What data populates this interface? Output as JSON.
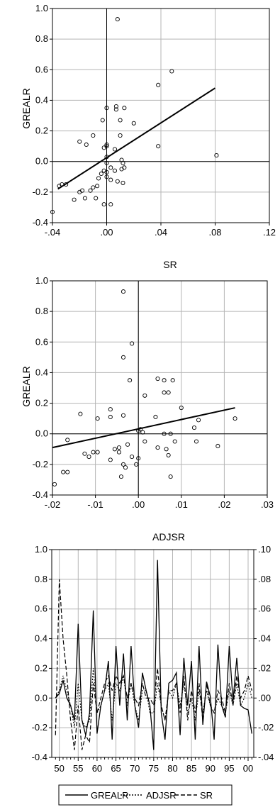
{
  "chart_data": [
    {
      "type": "scatter",
      "title": "",
      "xlabel": "",
      "ylabel": "GREALR",
      "xlim": [
        -0.04,
        0.12
      ],
      "ylim": [
        -0.4,
        1.0
      ],
      "x_ticks": [
        ".04",
        ".00",
        ".04",
        ".08",
        ".12"
      ],
      "x_tick_values": [
        -0.04,
        0.0,
        0.04,
        0.08,
        0.12
      ],
      "x_tick_labels": [
        "-.04",
        ".00",
        ".04",
        ".08",
        ".12"
      ],
      "y_tick_values": [
        -0.4,
        -0.2,
        0.0,
        0.2,
        0.4,
        0.6,
        0.8,
        1.0
      ],
      "y_tick_labels": [
        "-0.4",
        "-0.2",
        "0.0",
        "0.2",
        "0.4",
        "0.6",
        "0.8",
        "1.0"
      ],
      "grid": true,
      "reference_lines": {
        "x": 0.0,
        "y": 0.0
      },
      "points": [
        [
          0.008,
          0.93
        ],
        [
          0.048,
          0.59
        ],
        [
          0.038,
          0.5
        ],
        [
          0.038,
          0.1
        ],
        [
          0.081,
          0.04
        ],
        [
          0.02,
          0.25
        ],
        [
          0.007,
          0.36
        ],
        [
          0.007,
          0.34
        ],
        [
          0.013,
          0.35
        ],
        [
          0.0,
          0.35
        ],
        [
          0.01,
          0.27
        ],
        [
          0.01,
          0.17
        ],
        [
          -0.003,
          0.27
        ],
        [
          -0.01,
          0.17
        ],
        [
          -0.02,
          0.13
        ],
        [
          -0.015,
          0.11
        ],
        [
          0.0,
          0.11
        ],
        [
          0.0,
          0.1
        ],
        [
          -0.002,
          0.09
        ],
        [
          0.006,
          0.08
        ],
        [
          0.011,
          0.01
        ],
        [
          0.012,
          -0.01
        ],
        [
          0.0,
          0.03
        ],
        [
          0.0,
          -0.01
        ],
        [
          0.003,
          -0.04
        ],
        [
          0.006,
          -0.06
        ],
        [
          0.013,
          -0.04
        ],
        [
          0.011,
          -0.05
        ],
        [
          -0.002,
          -0.06
        ],
        [
          -0.004,
          -0.08
        ],
        [
          0.0,
          -0.1
        ],
        [
          -0.006,
          -0.11
        ],
        [
          0.003,
          -0.12
        ],
        [
          0.008,
          -0.13
        ],
        [
          0.012,
          -0.14
        ],
        [
          -0.007,
          -0.16
        ],
        [
          -0.01,
          -0.17
        ],
        [
          -0.012,
          -0.19
        ],
        [
          -0.018,
          -0.19
        ],
        [
          -0.02,
          -0.2
        ],
        [
          -0.016,
          -0.24
        ],
        [
          -0.024,
          -0.25
        ],
        [
          -0.033,
          -0.15
        ],
        [
          -0.035,
          -0.16
        ],
        [
          -0.03,
          -0.15
        ],
        [
          -0.002,
          -0.28
        ],
        [
          0.003,
          -0.28
        ],
        [
          -0.04,
          -0.33
        ],
        [
          -0.008,
          -0.24
        ],
        [
          0.0,
          -0.07
        ]
      ],
      "fit_line": [
        [
          -0.036,
          -0.18
        ],
        [
          0.08,
          0.48
        ]
      ]
    },
    {
      "type": "scatter",
      "title": "SR",
      "xlabel": "",
      "ylabel": "GREALR",
      "xlim": [
        -0.02,
        0.03
      ],
      "ylim": [
        -0.4,
        1.0
      ],
      "x_tick_values": [
        -0.02,
        -0.01,
        0.0,
        0.01,
        0.02,
        0.03
      ],
      "x_tick_labels": [
        "-.02",
        "-.01",
        ".00",
        ".01",
        ".02",
        ".03"
      ],
      "y_tick_values": [
        -0.4,
        -0.2,
        0.0,
        0.2,
        0.4,
        0.6,
        0.8,
        1.0
      ],
      "y_tick_labels": [
        "-0.4",
        "-0.2",
        "0.0",
        "0.2",
        "0.4",
        "0.6",
        "0.8",
        "1.0"
      ],
      "grid": true,
      "reference_lines": {
        "x": 0.0,
        "y": 0.0
      },
      "points": [
        [
          -0.0035,
          0.93
        ],
        [
          -0.0015,
          0.59
        ],
        [
          -0.0035,
          0.5
        ],
        [
          -0.002,
          0.35
        ],
        [
          0.0045,
          0.36
        ],
        [
          0.006,
          0.35
        ],
        [
          0.008,
          0.35
        ],
        [
          0.006,
          0.27
        ],
        [
          0.007,
          0.27
        ],
        [
          0.0015,
          0.25
        ],
        [
          0.01,
          0.17
        ],
        [
          -0.0065,
          0.16
        ],
        [
          -0.0035,
          0.12
        ],
        [
          -0.0065,
          0.11
        ],
        [
          -0.0095,
          0.1
        ],
        [
          0.004,
          0.11
        ],
        [
          0.0225,
          0.1
        ],
        [
          0.014,
          0.09
        ],
        [
          0.013,
          0.04
        ],
        [
          0.0005,
          0.03
        ],
        [
          0.001,
          0.01
        ],
        [
          0.006,
          0.0
        ],
        [
          0.0075,
          0.0
        ],
        [
          -0.0165,
          -0.04
        ],
        [
          -0.0025,
          -0.07
        ],
        [
          0.0015,
          -0.05
        ],
        [
          0.0085,
          -0.05
        ],
        [
          0.0135,
          -0.05
        ],
        [
          0.0185,
          -0.08
        ],
        [
          0.0045,
          -0.09
        ],
        [
          0.0065,
          -0.1
        ],
        [
          -0.0055,
          -0.1
        ],
        [
          -0.0095,
          -0.12
        ],
        [
          -0.0105,
          -0.12
        ],
        [
          -0.0125,
          -0.13
        ],
        [
          -0.0115,
          -0.15
        ],
        [
          -0.0045,
          -0.12
        ],
        [
          -0.0015,
          -0.15
        ],
        [
          0.0,
          -0.16
        ],
        [
          0.007,
          -0.14
        ],
        [
          -0.0065,
          -0.17
        ],
        [
          -0.0035,
          -0.2
        ],
        [
          -0.003,
          -0.22
        ],
        [
          -0.0005,
          -0.2
        ],
        [
          -0.0165,
          -0.25
        ],
        [
          -0.0175,
          -0.25
        ],
        [
          -0.004,
          -0.28
        ],
        [
          0.0075,
          -0.28
        ],
        [
          -0.0195,
          -0.33
        ],
        [
          -0.0045,
          -0.09
        ],
        [
          -0.0135,
          0.13
        ],
        [
          0.0,
          0.02
        ]
      ],
      "fit_line": [
        [
          -0.02,
          -0.09
        ],
        [
          0.0225,
          0.17
        ]
      ]
    },
    {
      "type": "line",
      "title": "ADJSR",
      "xlabel": "",
      "ylabel": "",
      "x": [
        1949,
        1950,
        1951,
        1952,
        1953,
        1954,
        1955,
        1956,
        1957,
        1958,
        1959,
        1960,
        1961,
        1962,
        1963,
        1964,
        1965,
        1966,
        1967,
        1968,
        1969,
        1970,
        1971,
        1972,
        1973,
        1974,
        1975,
        1976,
        1977,
        1978,
        1979,
        1980,
        1981,
        1982,
        1983,
        1984,
        1985,
        1986,
        1987,
        1988,
        1989,
        1990,
        1991,
        1992,
        1993,
        1994,
        1995,
        1996,
        1997,
        1998,
        1999,
        2000,
        2001
      ],
      "x_tick_values": [
        1950,
        1955,
        1960,
        1965,
        1970,
        1975,
        1980,
        1985,
        1990,
        1995,
        2000
      ],
      "x_tick_labels": [
        "50",
        "55",
        "60",
        "65",
        "70",
        "75",
        "80",
        "85",
        "90",
        "95",
        "00"
      ],
      "xlim": [
        1948,
        2001.5
      ],
      "y_left_lim": [
        -0.4,
        1.0
      ],
      "y_left_ticks": [
        -0.4,
        -0.2,
        0.0,
        0.2,
        0.4,
        0.6,
        0.8,
        1.0
      ],
      "y_left_labels": [
        "-0.4",
        "-0.2",
        "0.0",
        "0.2",
        "0.4",
        "0.6",
        "0.8",
        "1.0"
      ],
      "y_right_lim": [
        -0.04,
        0.1
      ],
      "y_right_ticks": [
        -0.04,
        -0.02,
        0.0,
        0.02,
        0.04,
        0.06,
        0.08,
        0.1
      ],
      "y_right_labels": [
        ".04",
        "-.02",
        ".00",
        ".02",
        ".04",
        ".06",
        ".08",
        ".10"
      ],
      "y_right_labels_display": [
        "-.04",
        "-.02",
        ".00",
        ".02",
        ".04",
        ".06",
        ".08",
        ".10"
      ],
      "grid": true,
      "legend_position": "bottom",
      "series": [
        {
          "name": "GREALR",
          "axis": "left",
          "style": "solid",
          "values": [
            0.0,
            0.03,
            0.12,
            0.0,
            -0.05,
            -0.15,
            0.5,
            -0.15,
            -0.25,
            -0.1,
            0.59,
            -0.24,
            -0.05,
            0.05,
            0.25,
            -0.28,
            0.35,
            -0.05,
            0.3,
            -0.15,
            0.35,
            -0.05,
            -0.2,
            0.17,
            0.05,
            -0.05,
            -0.35,
            0.93,
            -0.1,
            -0.28,
            0.1,
            0.12,
            0.17,
            -0.25,
            0.27,
            -0.05,
            0.25,
            -0.28,
            0.35,
            -0.18,
            0.11,
            0.01,
            -0.28,
            0.36,
            -0.05,
            -0.13,
            0.35,
            -0.02,
            0.27,
            -0.05,
            -0.07,
            -0.08,
            -0.24
          ]
        },
        {
          "name": "ADJSR",
          "axis": "right",
          "style": "dotted",
          "values": [
            0.0,
            0.005,
            0.015,
            0.005,
            -0.005,
            -0.02,
            0.01,
            -0.015,
            -0.02,
            -0.015,
            0.02,
            -0.01,
            -0.005,
            0.005,
            0.01,
            -0.015,
            0.01,
            0.005,
            0.015,
            -0.005,
            0.01,
            -0.005,
            -0.015,
            0.005,
            0.005,
            -0.01,
            -0.01,
            0.01,
            -0.005,
            -0.015,
            0.005,
            0.0,
            0.01,
            -0.005,
            0.01,
            -0.01,
            0.0,
            -0.015,
            0.005,
            -0.01,
            0.005,
            -0.005,
            -0.01,
            0.0,
            -0.005,
            -0.01,
            0.005,
            -0.005,
            0.01,
            -0.005,
            0.0,
            0.01,
            0.0
          ]
        },
        {
          "name": "SR",
          "axis": "right",
          "style": "dashed",
          "values": [
            -0.025,
            0.08,
            0.04,
            0.015,
            -0.015,
            -0.035,
            -0.005,
            -0.035,
            -0.025,
            -0.03,
            0.01,
            -0.01,
            0.0,
            0.01,
            0.015,
            0.005,
            0.015,
            0.01,
            0.015,
            0.0,
            0.01,
            0.0,
            -0.005,
            0.01,
            0.0,
            0.0,
            -0.005,
            0.02,
            -0.005,
            -0.015,
            0.005,
            0.005,
            0.01,
            -0.01,
            0.015,
            -0.015,
            0.005,
            -0.01,
            0.01,
            -0.015,
            0.01,
            -0.005,
            -0.01,
            0.005,
            0.0,
            -0.01,
            0.01,
            -0.005,
            0.015,
            0.0,
            0.005,
            0.015,
            0.005
          ]
        }
      ]
    }
  ]
}
